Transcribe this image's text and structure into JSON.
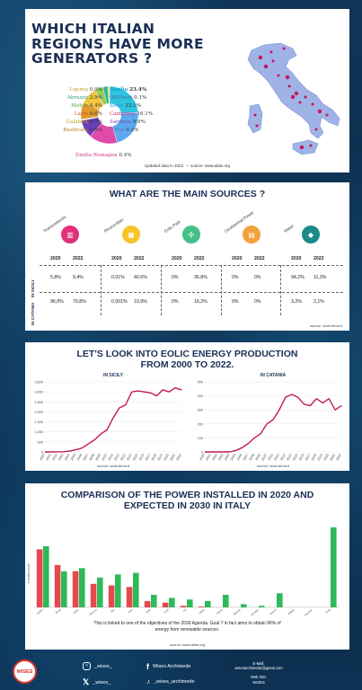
{
  "panel1": {
    "title": "WHICH ITALIAN REGIONS HAVE MORE GENERATORS ?",
    "footer_updated": "Updated data in 2022",
    "footer_source": "source: www.atlas.org",
    "chart_data": {
      "type": "pie",
      "categories": [
        "Apulia",
        "OffShore",
        "Sicily",
        "Campania",
        "Sardinia",
        "Other",
        "Emilia Romagna",
        "Basilicata",
        "Calabria",
        "Lazio",
        "Molise",
        "Abruzzo",
        "Liguria"
      ],
      "values": [
        23.4,
        0.1,
        22.1,
        16.1,
        9.9,
        0.3,
        0.4,
        9.8,
        8.7,
        0.6,
        4.4,
        2.9,
        0.9
      ],
      "labels": [
        "23.4%",
        "0.1%",
        "22.1%",
        "16.1%",
        "9.9%",
        "0.3%",
        "0.4%",
        "9.8%",
        "8.7%",
        "0.6%",
        "4.4%",
        "2.9%",
        "0.9%"
      ],
      "colors": [
        "#2ec4e0",
        "#9ad6e8",
        "#5da9f0",
        "#e04aa8",
        "#6a3fb6",
        "#bfe0ff",
        "#f2a0c8",
        "#e09a2a",
        "#f0c63a",
        "#f07a2a",
        "#8fd14f",
        "#37b39a",
        "#f5e36a"
      ],
      "label_colors": [
        "#16a7c8",
        "#4a6f9a",
        "#3a89d6",
        "#c2338a",
        "#7a3fb6",
        "#5a7fb0",
        "#d03a8a",
        "#b87a10",
        "#c49c10",
        "#d85a1a",
        "#5aa030",
        "#2a9a7a",
        "#b8a020"
      ]
    }
  },
  "panel2": {
    "title": "WHAT ARE THE MAIN SOURCES ?",
    "sources": [
      {
        "name": "Thermoelectric",
        "color": "#e0307a",
        "icon": "factory-icon",
        "y2020_sicily": "5,8%",
        "y2022_sicily": "9,4%",
        "y2020_catania": "96,8%",
        "y2022_catania": "70,8%"
      },
      {
        "name": "Photovoltaic",
        "color": "#f5c62a",
        "icon": "solar-panel-icon",
        "y2020_sicily": "0.01%",
        "y2022_sicily": "40,6%",
        "y2020_catania": "0.001%",
        "y2022_catania": "10,9%"
      },
      {
        "name": "Eolic Pale",
        "color": "#43c086",
        "icon": "wind-turbine-icon",
        "y2020_sicily": "0%",
        "y2022_sicily": "36,8%",
        "y2020_catania": "0%",
        "y2022_catania": "16,2%"
      },
      {
        "name": "Geothermal Power",
        "color": "#f2a23a",
        "icon": "geothermal-icon",
        "y2020_sicily": "0%",
        "y2022_sicily": "0%",
        "y2020_catania": "0%",
        "y2022_catania": "0%"
      },
      {
        "name": "Water",
        "color": "#1b8a8a",
        "icon": "water-drop-icon",
        "y2020_sicily": "94,2%",
        "y2022_sicily": "11,3%",
        "y2020_catania": "3,2%",
        "y2022_catania": "2,1%"
      }
    ],
    "year_a": "2020",
    "year_b": "2022",
    "row_sicily": "IN SICILY",
    "row_catania": "IN CATANIA",
    "source": "source: www.terna.it"
  },
  "panel3": {
    "title": "LET'S LOOK INTO EOLIC ENERGY PRODUCTION FROM 2000 TO 2022.",
    "source_left": "source: www.terna.it",
    "source_right": "source: www.terna.it",
    "chart_data": [
      {
        "type": "line",
        "title": "IN SICILY",
        "x": [
          "2000",
          "2001",
          "2002",
          "2003",
          "2004",
          "2005",
          "2006",
          "2007",
          "2008",
          "2009",
          "2010",
          "2011",
          "2012",
          "2013",
          "2014",
          "2015",
          "2016",
          "2017",
          "2018",
          "2019",
          "2020",
          "2021",
          "2022"
        ],
        "values": [
          0,
          0,
          5,
          10,
          40,
          110,
          200,
          400,
          600,
          900,
          1100,
          1700,
          2200,
          2350,
          3000,
          3050,
          3000,
          2950,
          2800,
          3100,
          3000,
          3200,
          3100
        ],
        "ylim": [
          0,
          3500
        ],
        "yticks": [
          "0",
          "500",
          "1,000",
          "1,500",
          "2,000",
          "2,500",
          "3,000",
          "3,500"
        ],
        "color": "#c2185b"
      },
      {
        "type": "line",
        "title": "IN CATANIA",
        "x": [
          "2000",
          "2001",
          "2002",
          "2003",
          "2004",
          "2005",
          "2006",
          "2007",
          "2008",
          "2009",
          "2010",
          "2011",
          "2012",
          "2013",
          "2014",
          "2015",
          "2016",
          "2017",
          "2018",
          "2019",
          "2020",
          "2021",
          "2022"
        ],
        "values": [
          0,
          0,
          0,
          0,
          0,
          10,
          30,
          60,
          100,
          130,
          200,
          230,
          300,
          390,
          410,
          390,
          340,
          330,
          380,
          350,
          380,
          300,
          330
        ],
        "ylim": [
          0,
          500
        ],
        "yticks": [
          "0",
          "100",
          "200",
          "300",
          "400",
          "500"
        ],
        "color": "#c2185b"
      }
    ]
  },
  "panel4": {
    "title": "COMPARISON OF THE POWER INSTALLED IN 2020 AND EXPECTED IN 2030 IN ITALY",
    "note": "This is linked to one of the objectives of the 2030 Agenda. Goal 7 in fact aims to obtain 90% of energy from renewable sources.",
    "source": "source: www.atlas.org",
    "ylabel": "Installed power",
    "chart_data": {
      "type": "bar",
      "categories": [
        "Hydro",
        "Wind",
        "Solar",
        "Thermo",
        "Bio",
        "Geo",
        "Gas",
        "Coal",
        "Oil",
        "Other",
        "Pump",
        "Marine",
        "Storage",
        "Import",
        "Waste",
        "Nuclear",
        "Total"
      ],
      "series": [
        {
          "name": "2020",
          "color": "#e5484d",
          "values": [
            37,
            27,
            23,
            15,
            14,
            13,
            4,
            3,
            1,
            0.5,
            0,
            0,
            0,
            0,
            0,
            0,
            0
          ]
        },
        {
          "name": "2030",
          "color": "#2fba5a",
          "values": [
            39,
            23,
            25,
            19,
            21,
            22,
            8,
            6,
            5,
            4,
            8,
            2,
            1,
            9,
            0,
            0,
            51
          ]
        }
      ],
      "ylim": [
        0,
        55
      ]
    }
  },
  "footer": {
    "logo_text": "WISES",
    "instagram": "_wises_",
    "twitter": "_wises_",
    "facebook": "Wises Archimede",
    "tiktok": "_wises_archimede",
    "email_label": "E-Mail:",
    "email": "wisesarchimede@gmail.com",
    "website_label": "Web Site:",
    "website": "WISES"
  }
}
